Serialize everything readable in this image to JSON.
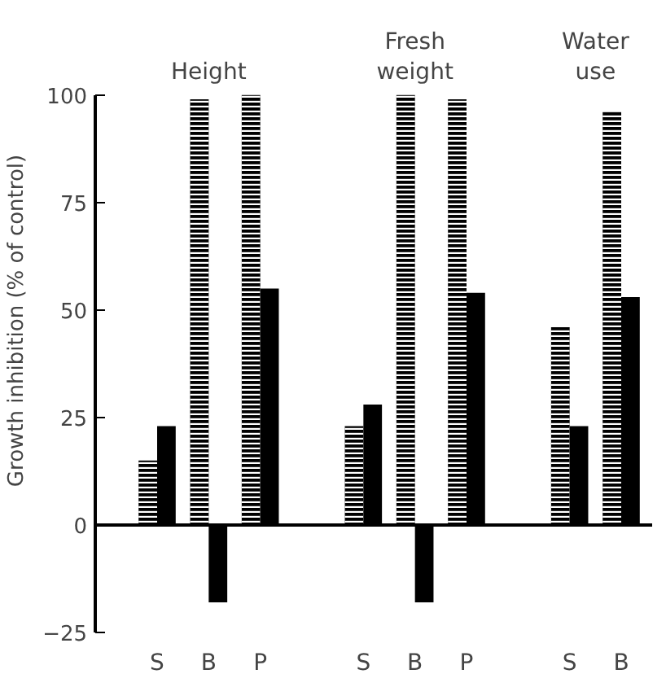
{
  "chart_data": {
    "type": "bar",
    "ylabel": "Growth inhibition (% of control)",
    "categories": [
      "S",
      "B",
      "P",
      null,
      "S",
      "B",
      "P",
      null,
      "S",
      "B"
    ],
    "series": [
      {
        "color": "#000000",
        "values": [
          15,
          99,
          100,
          null,
          23,
          100,
          99,
          null,
          46,
          96
        ]
      },
      {
        "color": "#000000",
        "values": [
          23,
          -18,
          55,
          null,
          28,
          -18,
          54,
          null,
          23,
          53
        ]
      }
    ],
    "ylim": [
      -25,
      100
    ],
    "yticks": [
      -25,
      0,
      25,
      50,
      75,
      100
    ],
    "ref_lines": [
      {
        "axis": "y",
        "value": 0,
        "color": "#000000"
      }
    ],
    "annotations": [
      "Height",
      "Fresh\nweight",
      "Water\nuse"
    ],
    "grid": false
  }
}
